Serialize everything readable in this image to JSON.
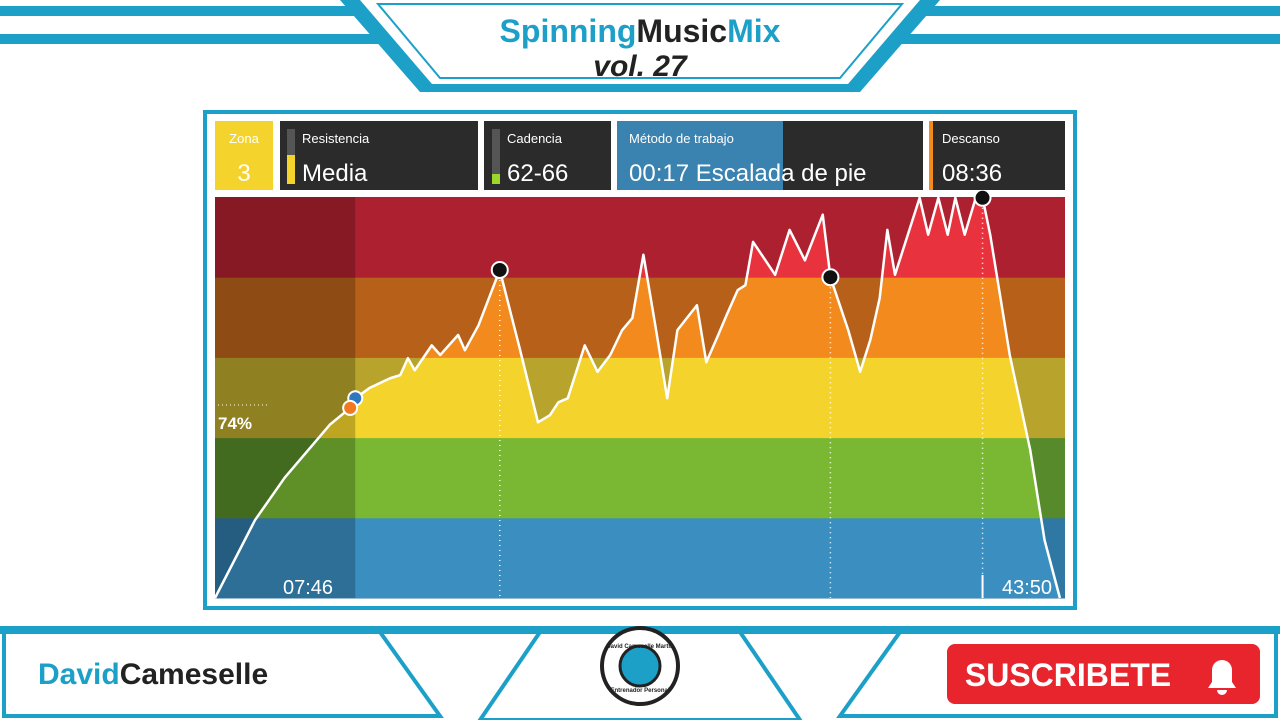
{
  "header": {
    "title_part1": "Spinning",
    "title_part2": "Music",
    "title_part3": "Mix",
    "volume": "vol. 27"
  },
  "stats": [
    {
      "label": "Zona",
      "value": "3"
    },
    {
      "label": "Resistencia",
      "value": "Media"
    },
    {
      "label": "Cadencia",
      "value": "62-66"
    },
    {
      "label": "Método de trabajo",
      "value": "00:17 Escalada de pie"
    },
    {
      "label": "Descanso",
      "value": "08:36"
    }
  ],
  "chart": {
    "threshold_label": "74%",
    "elapsed": "07:46",
    "remaining": "43:50",
    "xlim": [
      0,
      100
    ],
    "ylim": [
      0,
      5
    ],
    "zones": [
      {
        "color": "#3a8fc0",
        "muted": "#2f78a4"
      },
      {
        "color": "#7ab833",
        "muted": "#578a2a"
      },
      {
        "color": "#f4d42c",
        "muted": "#b8a42c"
      },
      {
        "color": "#f28a1e",
        "muted": "#b6601a"
      },
      {
        "color": "#e8333f",
        "muted": "#ad202f"
      }
    ],
    "x": [
      0,
      4.7,
      8.2,
      13.5,
      15.9,
      16.5,
      18.2,
      20.6,
      21.8,
      22.7,
      23.5,
      25.5,
      26.5,
      28.6,
      29.4,
      31.0,
      33.5,
      35.9,
      38.0,
      39.4,
      40.4,
      41.5,
      43.5,
      45.0,
      46.5,
      47.9,
      49.1,
      50.4,
      51.8,
      53.2,
      54.4,
      56.7,
      57.8,
      59.2,
      60.2,
      61.5,
      62.4,
      63.3,
      65.9,
      67.6,
      69.4,
      71.5,
      72.4,
      74.5,
      75.9,
      77.1,
      78.2,
      79.1,
      80.0,
      82.9,
      83.9,
      85.1,
      86.2,
      87.1,
      88.2,
      89.5,
      90.3,
      91.2,
      93.5,
      95.9,
      97.6,
      99.4
    ],
    "y": [
      0,
      0.97,
      1.5,
      2.16,
      2.37,
      2.49,
      2.62,
      2.74,
      2.78,
      2.99,
      2.84,
      3.15,
      3.03,
      3.28,
      3.09,
      3.4,
      4.09,
      3.09,
      2.19,
      2.28,
      2.44,
      2.49,
      3.15,
      2.82,
      3.03,
      3.34,
      3.49,
      4.28,
      3.4,
      2.49,
      3.34,
      3.65,
      2.94,
      3.28,
      3.53,
      3.84,
      3.9,
      4.44,
      4.03,
      4.59,
      4.21,
      4.78,
      4.0,
      3.34,
      2.82,
      3.22,
      3.74,
      4.59,
      4.03,
      4.99,
      4.53,
      4.99,
      4.53,
      4.99,
      4.53,
      4.99,
      4.99,
      4.53,
      3.03,
      1.85,
      0.72,
      0
    ],
    "markers": [
      {
        "x": 33.5,
        "y": 4.09
      },
      {
        "x": 72.4,
        "y": 4.0
      },
      {
        "x": 90.3,
        "y": 4.99
      }
    ],
    "position": [
      {
        "x": 16.5,
        "y": 2.49,
        "color": "#2f78c0"
      },
      {
        "x": 15.9,
        "y": 2.37,
        "color": "#f07a20"
      }
    ]
  },
  "footer": {
    "name_part1": "David",
    "name_part2": "Cameselle",
    "subscribe": "SUSCRIBETE",
    "logo_top": "David Cameselle Martín",
    "logo_bottom": "Entrenador Personal"
  }
}
